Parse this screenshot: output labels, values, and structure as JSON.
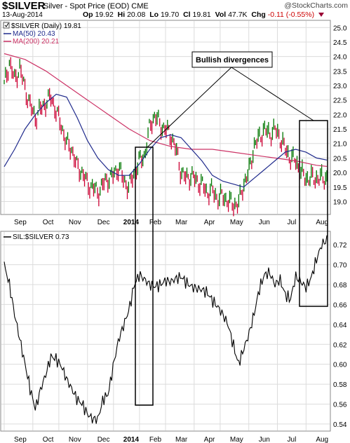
{
  "header": {
    "symbol": "$SILVER",
    "description": "Silver - Spot Price (EOD)  CME",
    "date": "13-Aug-2014",
    "open_label": "Op",
    "open": "19.92",
    "high_label": "Hi",
    "high": "20.08",
    "low_label": "Lo",
    "low": "19.70",
    "close_label": "Cl",
    "close": "19.81",
    "vol_label": "Vol",
    "vol": "47.7K",
    "chg_label": "Chg",
    "chg": "-0.11 (-0.55%)",
    "watermark": "@StockCharts.com"
  },
  "colors": {
    "price_up": "#007700",
    "price_down": "#cc0033",
    "ma50": "#1f2a8c",
    "ma200": "#cc3366",
    "ratio": "#000000",
    "grid": "#dcdcdc"
  },
  "annotation": "Bullish divergences",
  "chart_data": [
    {
      "type": "line",
      "legend": {
        "price": "$SILVER (Daily) 19.81",
        "ma50": "MA(50) 20.43",
        "ma200": "MA(200) 20.21"
      },
      "ylim": [
        18.6,
        25.2
      ],
      "yticks": [
        19.0,
        19.5,
        20.0,
        20.5,
        21.0,
        21.5,
        22.0,
        22.5,
        23.0,
        23.5,
        24.0,
        24.5,
        25.0
      ],
      "x_months": [
        "Sep",
        "Oct",
        "Nov",
        "Dec",
        "2014",
        "Feb",
        "Mar",
        "Apr",
        "May",
        "Jun",
        "Jul",
        "Aug"
      ],
      "series": [
        {
          "name": "$SILVER (Daily)",
          "x": [
            0,
            4,
            8,
            12,
            16,
            20,
            24,
            28,
            32,
            36,
            40,
            44,
            48,
            52,
            56,
            60,
            64,
            68,
            72,
            76,
            80,
            84,
            88,
            92,
            96,
            100,
            104,
            108,
            112,
            116,
            120,
            124,
            128,
            132,
            136,
            140,
            144,
            148,
            152,
            156,
            160,
            164,
            168,
            172,
            176,
            180,
            184,
            188,
            192,
            196,
            200,
            204,
            208,
            212,
            216,
            220,
            224,
            228,
            232,
            236,
            240,
            244,
            248
          ],
          "values": [
            23.0,
            23.8,
            23.2,
            23.6,
            22.9,
            22.3,
            21.9,
            22.2,
            22.4,
            22.6,
            22.1,
            21.6,
            21.0,
            20.8,
            20.2,
            20.0,
            19.6,
            19.5,
            19.3,
            19.6,
            19.8,
            19.9,
            20.2,
            19.7,
            19.5,
            20.0,
            20.4,
            20.6,
            21.6,
            22.0,
            21.6,
            21.5,
            21.3,
            20.8,
            20.0,
            19.8,
            19.9,
            19.7,
            19.6,
            19.3,
            19.4,
            19.1,
            19.2,
            19.0,
            18.9,
            18.9,
            19.6,
            20.0,
            20.9,
            21.2,
            21.5,
            21.3,
            21.5,
            21.2,
            20.8,
            20.5,
            20.4,
            20.0,
            19.8,
            19.8,
            19.8,
            19.8,
            19.81
          ]
        },
        {
          "name": "MA(50)",
          "x": [
            0,
            8,
            16,
            24,
            32,
            40,
            48,
            56,
            64,
            72,
            80,
            88,
            96,
            104,
            112,
            120,
            128,
            136,
            144,
            152,
            160,
            168,
            176,
            184,
            192,
            200,
            208,
            216,
            224,
            232,
            240,
            248
          ],
          "values": [
            20.2,
            20.8,
            21.5,
            22.0,
            22.4,
            22.7,
            22.6,
            21.9,
            21.1,
            20.5,
            20.1,
            19.9,
            19.9,
            20.3,
            20.8,
            21.2,
            21.3,
            21.2,
            20.8,
            20.4,
            19.9,
            19.7,
            19.6,
            19.5,
            19.8,
            20.1,
            20.4,
            20.7,
            20.8,
            20.7,
            20.5,
            20.43
          ]
        },
        {
          "name": "MA(200)",
          "x": [
            0,
            16,
            32,
            48,
            64,
            80,
            96,
            112,
            128,
            144,
            160,
            176,
            192,
            208,
            224,
            240,
            248
          ],
          "values": [
            24.1,
            23.9,
            23.5,
            23.0,
            22.5,
            22.0,
            21.5,
            21.1,
            20.9,
            20.8,
            20.8,
            20.7,
            20.6,
            20.5,
            20.4,
            20.25,
            20.21
          ]
        }
      ]
    },
    {
      "type": "line",
      "legend": {
        "ratio": "SIL:$SILVER 0.73"
      },
      "ylim": [
        0.535,
        0.73
      ],
      "yticks": [
        0.54,
        0.56,
        0.58,
        0.6,
        0.62,
        0.64,
        0.66,
        0.68,
        0.7,
        0.72
      ],
      "x_months": [
        "Sep",
        "Oct",
        "Nov",
        "Dec",
        "2014",
        "Feb",
        "Mar",
        "Apr",
        "May",
        "Jun",
        "Jul",
        "Aug"
      ],
      "series": [
        {
          "name": "SIL:$SILVER",
          "x": [
            0,
            4,
            8,
            12,
            16,
            20,
            24,
            28,
            32,
            36,
            40,
            44,
            48,
            52,
            56,
            60,
            64,
            68,
            72,
            76,
            80,
            84,
            88,
            92,
            96,
            100,
            104,
            108,
            112,
            116,
            120,
            124,
            128,
            132,
            136,
            140,
            144,
            148,
            152,
            156,
            160,
            164,
            168,
            172,
            176,
            180,
            184,
            188,
            192,
            196,
            200,
            204,
            208,
            212,
            216,
            220,
            224,
            228,
            232,
            236,
            240,
            244,
            248
          ],
          "values": [
            0.7,
            0.68,
            0.65,
            0.625,
            0.6,
            0.575,
            0.555,
            0.575,
            0.59,
            0.608,
            0.605,
            0.598,
            0.585,
            0.575,
            0.565,
            0.56,
            0.55,
            0.545,
            0.545,
            0.565,
            0.57,
            0.6,
            0.625,
            0.64,
            0.655,
            0.68,
            0.69,
            0.685,
            0.68,
            0.678,
            0.68,
            0.684,
            0.683,
            0.686,
            0.688,
            0.682,
            0.678,
            0.676,
            0.675,
            0.672,
            0.664,
            0.658,
            0.65,
            0.64,
            0.62,
            0.6,
            0.615,
            0.63,
            0.65,
            0.675,
            0.69,
            0.692,
            0.68,
            0.685,
            0.67,
            0.665,
            0.688,
            0.683,
            0.677,
            0.687,
            0.705,
            0.72,
            0.725
          ]
        }
      ]
    }
  ]
}
